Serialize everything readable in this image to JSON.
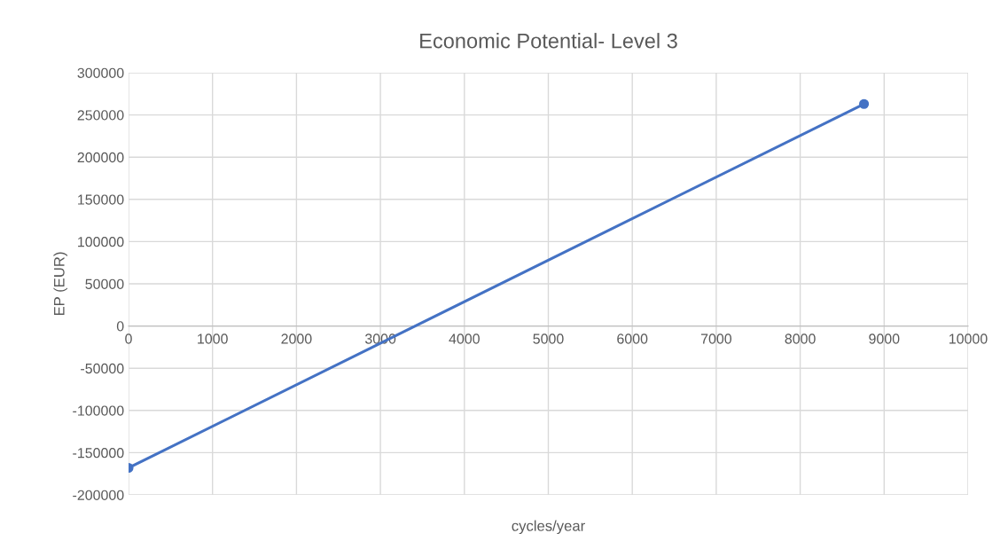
{
  "chart_data": {
    "type": "line",
    "title": "Economic Potential- Level 3",
    "xlabel": "cycles/year",
    "ylabel": "EP (EUR)",
    "x": [
      0,
      8760
    ],
    "series": [
      {
        "color": "#4472c4",
        "values": [
          -168000,
          263000
        ]
      }
    ],
    "xlim": [
      0,
      10000
    ],
    "xticks": [
      0,
      1000,
      2000,
      3000,
      4000,
      5000,
      6000,
      7000,
      8000,
      9000,
      10000
    ],
    "ylim": [
      -200000,
      300000
    ],
    "yticks": [
      -200000,
      -150000,
      -100000,
      -50000,
      0,
      50000,
      100000,
      150000,
      200000,
      250000,
      300000
    ],
    "grid": true,
    "marker": "circle",
    "line_style": "solid"
  }
}
